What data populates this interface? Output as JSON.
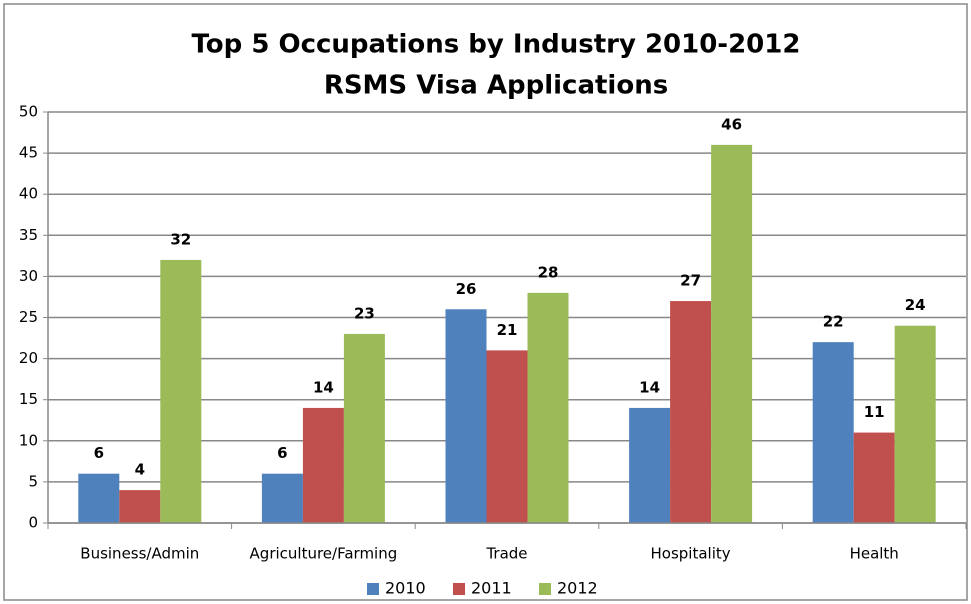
{
  "chart_data": {
    "type": "bar",
    "title": "Top 5 Occupations by Industry 2010-2012",
    "subtitle": "RSMS Visa Applications",
    "categories": [
      "Business/Admin",
      "Agriculture/Farming",
      "Trade",
      "Hospitality",
      "Health"
    ],
    "series": [
      {
        "name": "2010",
        "color": "#4f81bd",
        "values": [
          6,
          6,
          26,
          14,
          22
        ]
      },
      {
        "name": "2011",
        "color": "#c0504d",
        "values": [
          4,
          14,
          21,
          27,
          11
        ]
      },
      {
        "name": "2012",
        "color": "#9bbb59",
        "values": [
          32,
          23,
          28,
          46,
          24
        ]
      }
    ],
    "ylim": [
      0,
      50
    ],
    "yticks": [
      0,
      5,
      10,
      15,
      20,
      25,
      30,
      35,
      40,
      45,
      50
    ],
    "grid": true,
    "legend": "bottom"
  }
}
